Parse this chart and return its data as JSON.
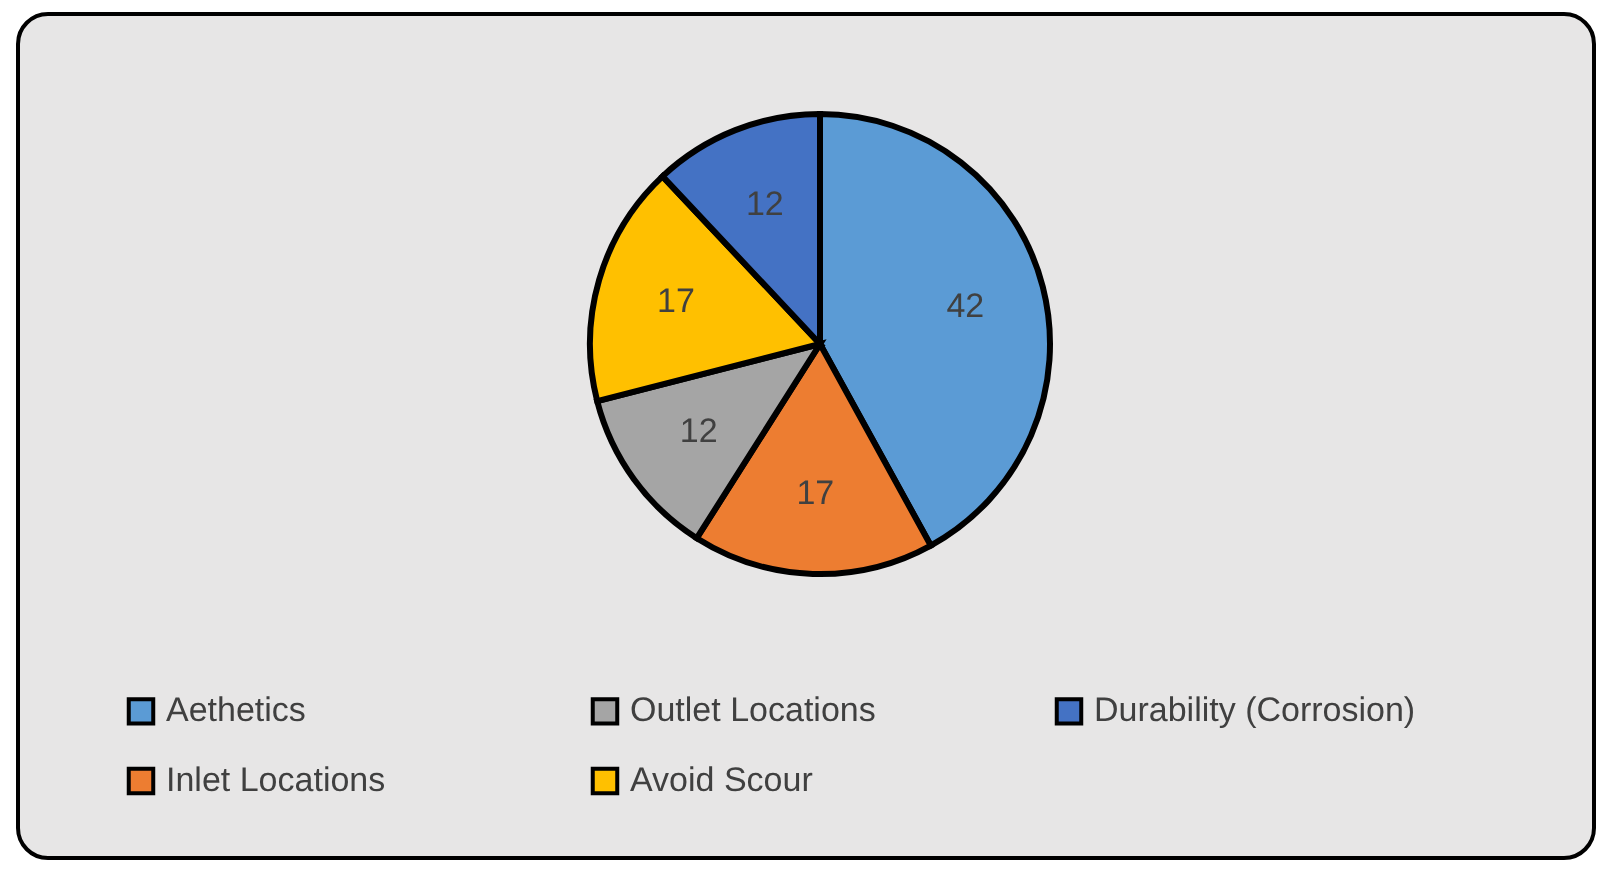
{
  "chart_data": {
    "type": "pie",
    "categories": [
      "Aethetics",
      "Inlet Locations",
      "Outlet Locations",
      "Avoid Scour",
      "Durability (Corrosion)"
    ],
    "values": [
      42,
      17,
      12,
      17,
      12
    ],
    "colors": [
      "#5b9bd5",
      "#ed7d31",
      "#a5a5a5",
      "#ffc000",
      "#4472c4"
    ],
    "data_labels": true,
    "legend": "bottom"
  }
}
